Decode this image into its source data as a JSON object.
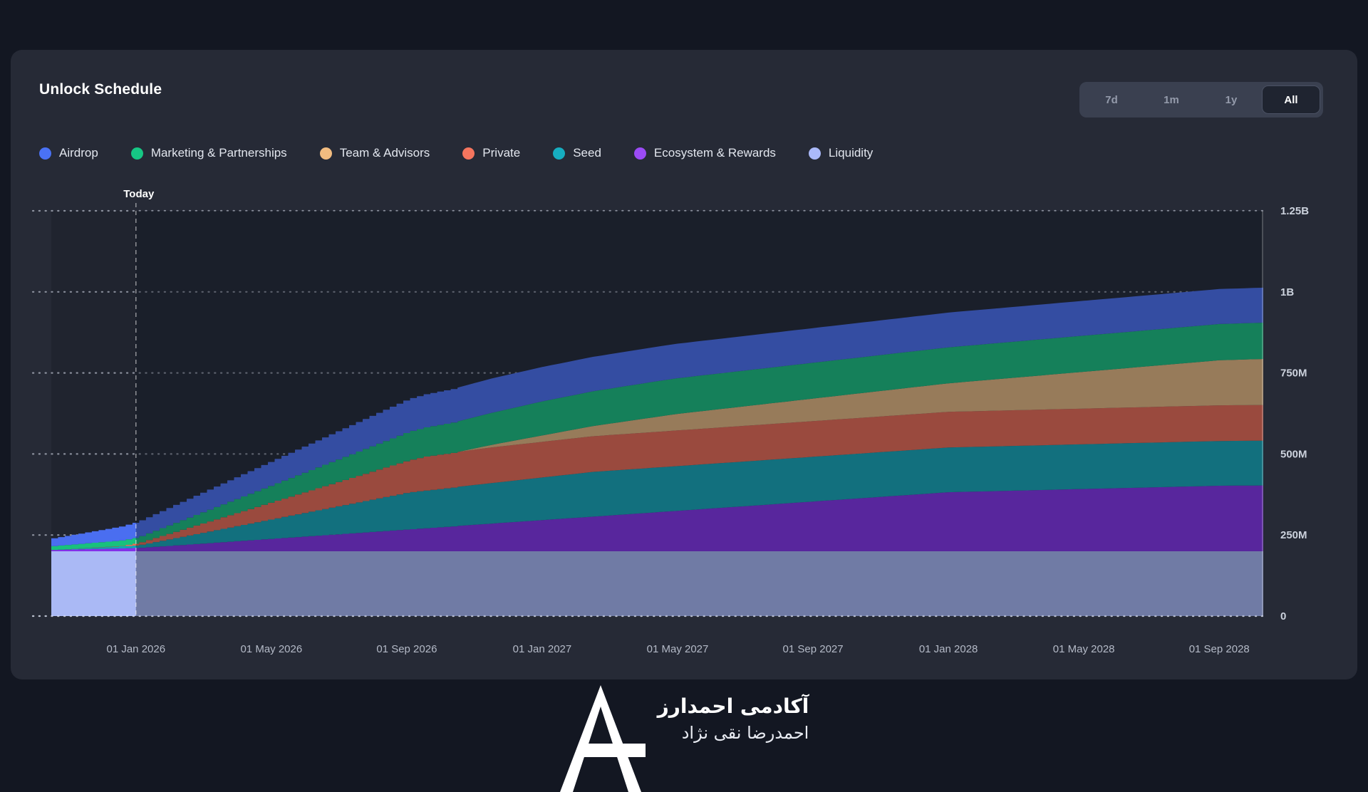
{
  "card": {
    "title": "Unlock Schedule"
  },
  "range_selector": {
    "options": [
      {
        "label": "7d",
        "active": false
      },
      {
        "label": "1m",
        "active": false
      },
      {
        "label": "1y",
        "active": false
      },
      {
        "label": "All",
        "active": true
      }
    ]
  },
  "legend": [
    {
      "label": "Airdrop",
      "color": "#4a72f5"
    },
    {
      "label": "Marketing & Partnerships",
      "color": "#16c784"
    },
    {
      "label": "Team & Advisors",
      "color": "#f2bc80"
    },
    {
      "label": "Private",
      "color": "#f5755e"
    },
    {
      "label": "Seed",
      "color": "#16adc0"
    },
    {
      "label": "Ecosystem & Rewards",
      "color": "#9b4bf5"
    },
    {
      "label": "Liquidity",
      "color": "#aab9fa"
    }
  ],
  "chart_data": {
    "type": "area",
    "stacked": true,
    "title": "Unlock Schedule",
    "value_unit": "tokens (millions)",
    "ylim": [
      0,
      1250
    ],
    "grid": "dotted-horizontal",
    "legend_position": "top",
    "y_axis_side": "right",
    "today_label": "Today",
    "today_month": 2.5,
    "x_span_months": 35.8,
    "step_zone_end_month": 12,
    "step_width_month": 0.2,
    "x_ticks": [
      {
        "month": 2.5,
        "label": "01 Jan 2026"
      },
      {
        "month": 6.5,
        "label": "01 May 2026"
      },
      {
        "month": 10.5,
        "label": "01 Sep 2026"
      },
      {
        "month": 14.5,
        "label": "01 Jan 2027"
      },
      {
        "month": 18.5,
        "label": "01 May 2027"
      },
      {
        "month": 22.5,
        "label": "01 Sep 2027"
      },
      {
        "month": 26.5,
        "label": "01 Jan 2028"
      },
      {
        "month": 30.5,
        "label": "01 May 2028"
      },
      {
        "month": 34.5,
        "label": "01 Sep 2028"
      }
    ],
    "y_ticks": [
      {
        "value": 0,
        "label": "0"
      },
      {
        "value": 250,
        "label": "250M"
      },
      {
        "value": 500,
        "label": "500M"
      },
      {
        "value": 750,
        "label": "750M"
      },
      {
        "value": 1000,
        "label": "1B"
      },
      {
        "value": 1250,
        "label": "1.25B"
      }
    ],
    "series": [
      {
        "name": "Liquidity",
        "color": "#aab9f5",
        "points_month_valueM": [
          [
            0,
            200
          ],
          [
            35.8,
            200
          ]
        ]
      },
      {
        "name": "Ecosystem & Rewards",
        "color": "#8430e8",
        "points_month_valueM": [
          [
            0,
            4
          ],
          [
            2.5,
            10
          ],
          [
            26.5,
            182
          ],
          [
            34.5,
            202
          ],
          [
            35.8,
            203
          ]
        ]
      },
      {
        "name": "Seed",
        "color": "#12a7b6",
        "points_month_valueM": [
          [
            0,
            0
          ],
          [
            2.5,
            8
          ],
          [
            10.5,
            114
          ],
          [
            16,
            138
          ],
          [
            35.8,
            138
          ]
        ]
      },
      {
        "name": "Private",
        "color": "#ee6a50",
        "points_month_valueM": [
          [
            0,
            0
          ],
          [
            2,
            1
          ],
          [
            11,
            105
          ],
          [
            13,
            110
          ],
          [
            35.8,
            110
          ]
        ]
      },
      {
        "name": "Team & Advisors",
        "color": "#e9b87d",
        "points_month_valueM": [
          [
            0,
            0
          ],
          [
            12,
            0
          ],
          [
            18.5,
            51
          ],
          [
            26.5,
            88
          ],
          [
            34.5,
            139
          ],
          [
            35.8,
            142
          ]
        ]
      },
      {
        "name": "Marketing & Partnerships",
        "color": "#18c17d",
        "points_month_valueM": [
          [
            0,
            12
          ],
          [
            2.5,
            18
          ],
          [
            10.5,
            88
          ],
          [
            14.5,
            105
          ],
          [
            18,
            110
          ],
          [
            35.8,
            112
          ]
        ]
      },
      {
        "name": "Airdrop",
        "color": "#4a6ef0",
        "points_month_valueM": [
          [
            0,
            24
          ],
          [
            2.5,
            48
          ],
          [
            10.5,
            101
          ],
          [
            13,
            106
          ],
          [
            35.8,
            108
          ]
        ]
      }
    ],
    "past_region_style": {
      "note": "area left of Today is brighter",
      "dim_overlay": "#131722",
      "dim_opacity": 0.38
    }
  },
  "footer": {
    "brand_line1": "آکادمی احمدارز",
    "brand_line2": "احمدرضا نقی نژاد"
  }
}
